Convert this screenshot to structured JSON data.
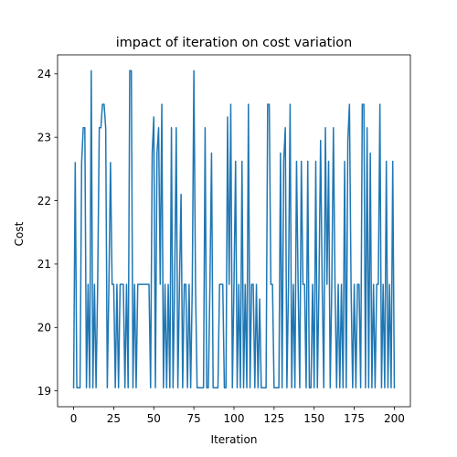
{
  "chart_data": {
    "type": "line",
    "title": "impact of iteration on cost variation",
    "xlabel": "Iteration",
    "ylabel": "Cost",
    "xlim": [
      -10,
      210
    ],
    "ylim": [
      18.75,
      24.3
    ],
    "xticks": [
      0,
      25,
      50,
      75,
      100,
      125,
      150,
      175,
      200
    ],
    "yticks": [
      19,
      20,
      21,
      22,
      23,
      24
    ],
    "grid": false,
    "legend": "none",
    "line_color": "#1f77b4",
    "series": [
      {
        "values": [
          [
            0,
            19.05
          ],
          [
            1,
            22.6
          ],
          [
            2,
            19.05
          ],
          [
            3,
            19.05
          ],
          [
            4,
            19.05
          ],
          [
            5,
            22.6
          ],
          [
            6,
            23.15
          ],
          [
            7,
            23.15
          ],
          [
            8,
            19.05
          ],
          [
            9,
            20.68
          ],
          [
            10,
            19.05
          ],
          [
            11,
            24.05
          ],
          [
            12,
            19.05
          ],
          [
            13,
            20.68
          ],
          [
            14,
            19.05
          ],
          [
            15,
            20.68
          ],
          [
            16,
            23.15
          ],
          [
            17,
            23.15
          ],
          [
            18,
            23.52
          ],
          [
            19,
            23.52
          ],
          [
            20,
            23.15
          ],
          [
            21,
            19.05
          ],
          [
            22,
            20.68
          ],
          [
            23,
            22.6
          ],
          [
            24,
            20.68
          ],
          [
            25,
            20.68
          ],
          [
            26,
            19.05
          ],
          [
            27,
            20.68
          ],
          [
            28,
            19.05
          ],
          [
            29,
            20.68
          ],
          [
            30,
            20.68
          ],
          [
            31,
            20.68
          ],
          [
            32,
            19.05
          ],
          [
            33,
            20.68
          ],
          [
            34,
            19.05
          ],
          [
            35,
            24.05
          ],
          [
            36,
            24.05
          ],
          [
            37,
            19.05
          ],
          [
            38,
            20.68
          ],
          [
            39,
            19.05
          ],
          [
            40,
            20.68
          ],
          [
            41,
            20.68
          ],
          [
            42,
            20.68
          ],
          [
            43,
            20.68
          ],
          [
            44,
            20.68
          ],
          [
            45,
            20.68
          ],
          [
            46,
            20.68
          ],
          [
            47,
            20.68
          ],
          [
            48,
            19.05
          ],
          [
            49,
            22.75
          ],
          [
            50,
            23.32
          ],
          [
            51,
            19.05
          ],
          [
            52,
            22.75
          ],
          [
            53,
            23.15
          ],
          [
            54,
            20.68
          ],
          [
            55,
            23.52
          ],
          [
            56,
            19.05
          ],
          [
            57,
            20.68
          ],
          [
            58,
            19.05
          ],
          [
            59,
            20.68
          ],
          [
            60,
            19.05
          ],
          [
            61,
            23.15
          ],
          [
            62,
            19.05
          ],
          [
            63,
            20.68
          ],
          [
            64,
            23.15
          ],
          [
            65,
            19.05
          ],
          [
            66,
            20.68
          ],
          [
            67,
            22.1
          ],
          [
            68,
            19.05
          ],
          [
            69,
            20.68
          ],
          [
            70,
            20.68
          ],
          [
            71,
            19.05
          ],
          [
            72,
            20.68
          ],
          [
            73,
            19.05
          ],
          [
            74,
            20.68
          ],
          [
            75,
            24.05
          ],
          [
            76,
            20.68
          ],
          [
            77,
            19.05
          ],
          [
            78,
            19.05
          ],
          [
            79,
            19.05
          ],
          [
            80,
            19.05
          ],
          [
            81,
            19.05
          ],
          [
            82,
            23.15
          ],
          [
            83,
            19.05
          ],
          [
            84,
            19.05
          ],
          [
            85,
            20.68
          ],
          [
            86,
            22.75
          ],
          [
            87,
            19.05
          ],
          [
            88,
            19.05
          ],
          [
            89,
            19.05
          ],
          [
            90,
            19.05
          ],
          [
            91,
            20.68
          ],
          [
            92,
            20.68
          ],
          [
            93,
            20.68
          ],
          [
            94,
            19.05
          ],
          [
            95,
            19.05
          ],
          [
            96,
            23.32
          ],
          [
            97,
            20.68
          ],
          [
            98,
            23.52
          ],
          [
            99,
            19.05
          ],
          [
            100,
            20.68
          ],
          [
            101,
            22.62
          ],
          [
            102,
            19.05
          ],
          [
            103,
            20.68
          ],
          [
            104,
            19.05
          ],
          [
            105,
            22.62
          ],
          [
            106,
            19.05
          ],
          [
            107,
            20.68
          ],
          [
            108,
            19.05
          ],
          [
            109,
            23.52
          ],
          [
            110,
            19.05
          ],
          [
            111,
            20.68
          ],
          [
            112,
            20.68
          ],
          [
            113,
            19.05
          ],
          [
            114,
            20.68
          ],
          [
            115,
            19.05
          ],
          [
            116,
            20.45
          ],
          [
            117,
            19.05
          ],
          [
            118,
            19.05
          ],
          [
            119,
            19.05
          ],
          [
            120,
            19.05
          ],
          [
            121,
            23.52
          ],
          [
            122,
            23.52
          ],
          [
            123,
            20.68
          ],
          [
            124,
            20.68
          ],
          [
            125,
            19.05
          ],
          [
            126,
            19.05
          ],
          [
            127,
            19.05
          ],
          [
            128,
            19.05
          ],
          [
            129,
            22.75
          ],
          [
            130,
            19.05
          ],
          [
            131,
            22.62
          ],
          [
            132,
            23.15
          ],
          [
            133,
            19.05
          ],
          [
            134,
            20.68
          ],
          [
            135,
            23.52
          ],
          [
            136,
            19.05
          ],
          [
            137,
            20.68
          ],
          [
            138,
            19.05
          ],
          [
            139,
            22.62
          ],
          [
            140,
            20.68
          ],
          [
            141,
            19.05
          ],
          [
            142,
            22.62
          ],
          [
            143,
            20.68
          ],
          [
            144,
            20.68
          ],
          [
            145,
            19.05
          ],
          [
            146,
            22.62
          ],
          [
            147,
            19.05
          ],
          [
            148,
            19.05
          ],
          [
            149,
            20.68
          ],
          [
            150,
            19.05
          ],
          [
            151,
            22.62
          ],
          [
            152,
            19.05
          ],
          [
            153,
            20.68
          ],
          [
            154,
            22.95
          ],
          [
            155,
            20.68
          ],
          [
            156,
            19.05
          ],
          [
            157,
            23.15
          ],
          [
            158,
            20.68
          ],
          [
            159,
            22.62
          ],
          [
            160,
            19.05
          ],
          [
            161,
            20.68
          ],
          [
            162,
            23.15
          ],
          [
            163,
            20.68
          ],
          [
            164,
            19.05
          ],
          [
            165,
            20.68
          ],
          [
            166,
            19.05
          ],
          [
            167,
            20.68
          ],
          [
            168,
            19.05
          ],
          [
            169,
            22.62
          ],
          [
            170,
            19.05
          ],
          [
            171,
            22.95
          ],
          [
            172,
            23.52
          ],
          [
            173,
            20.68
          ],
          [
            174,
            19.05
          ],
          [
            175,
            20.68
          ],
          [
            176,
            19.05
          ],
          [
            177,
            20.68
          ],
          [
            178,
            20.68
          ],
          [
            179,
            19.05
          ],
          [
            180,
            23.52
          ],
          [
            181,
            23.52
          ],
          [
            182,
            19.05
          ],
          [
            183,
            23.15
          ],
          [
            184,
            19.05
          ],
          [
            185,
            22.75
          ],
          [
            186,
            19.05
          ],
          [
            187,
            20.68
          ],
          [
            188,
            19.05
          ],
          [
            189,
            20.68
          ],
          [
            190,
            20.68
          ],
          [
            191,
            23.52
          ],
          [
            192,
            19.05
          ],
          [
            193,
            20.68
          ],
          [
            194,
            19.05
          ],
          [
            195,
            22.62
          ],
          [
            196,
            19.05
          ],
          [
            197,
            20.68
          ],
          [
            198,
            19.05
          ],
          [
            199,
            22.62
          ],
          [
            200,
            19.05
          ]
        ]
      }
    ]
  }
}
